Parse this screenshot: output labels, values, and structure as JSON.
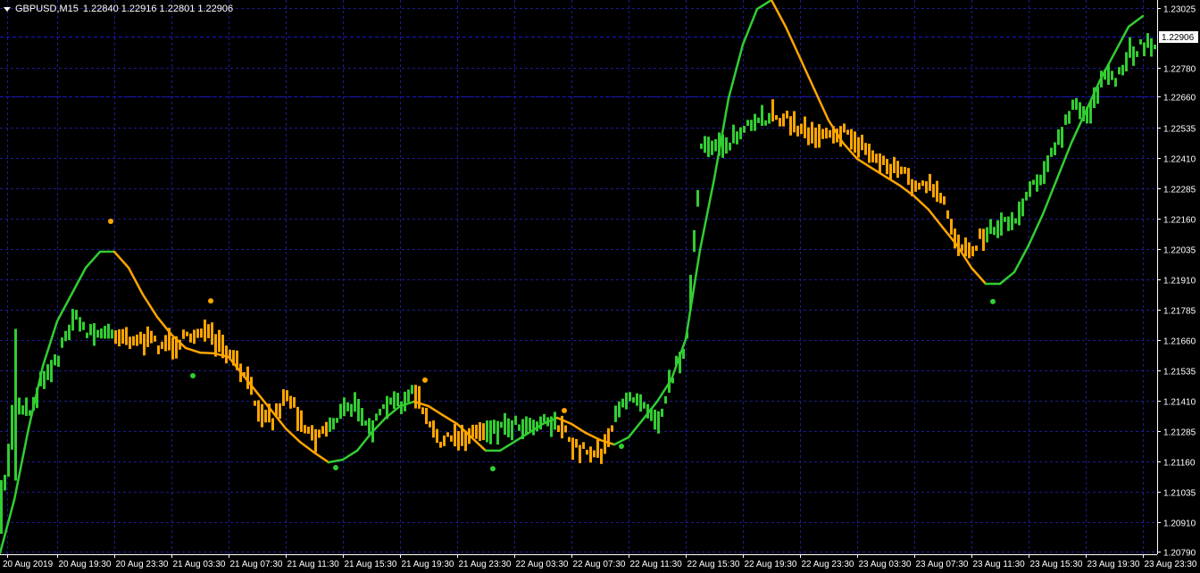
{
  "header": {
    "symbol": "GBPUSD,M15",
    "ohlc": "1.22840 1.22916 1.22801 1.22906",
    "menu_icon": "triangle-down-icon"
  },
  "colors": {
    "background": "#000000",
    "bull": "#32cd32",
    "bear": "#ffa500",
    "grid": "#1c1c8c",
    "axis": "#ffffff",
    "level_line": "#1818c8"
  },
  "chart_data": {
    "type": "bar",
    "title": "GBPUSD,M15",
    "current_price": "1.22906",
    "levels": [
      1.22906,
      1.2266
    ],
    "ylim": [
      1.2079,
      1.23025
    ],
    "grid": true,
    "y_ticks": [
      "1.23025",
      "1.22780",
      "1.22660",
      "1.22535",
      "1.22410",
      "1.22285",
      "1.22160",
      "1.22035",
      "1.21910",
      "1.21785",
      "1.21660",
      "1.21535",
      "1.21410",
      "1.21285",
      "1.21160",
      "1.21035",
      "1.20910",
      "1.20790"
    ],
    "x_ticks": [
      "20 Aug 2019",
      "20 Aug 19:30",
      "20 Aug 23:30",
      "21 Aug 03:30",
      "21 Aug 07:30",
      "21 Aug 11:30",
      "21 Aug 15:30",
      "21 Aug 19:30",
      "21 Aug 23:30",
      "22 Aug 03:30",
      "22 Aug 07:30",
      "22 Aug 11:30",
      "22 Aug 15:30",
      "22 Aug 19:30",
      "22 Aug 23:30",
      "23 Aug 03:30",
      "23 Aug 07:30",
      "23 Aug 11:30",
      "23 Aug 15:30",
      "23 Aug 19:30",
      "23 Aug 23:30"
    ],
    "x": [
      "20 Aug 15:30",
      "20 Aug 16:30",
      "20 Aug 17:30",
      "20 Aug 18:30",
      "20 Aug 19:30",
      "20 Aug 20:30",
      "20 Aug 21:30",
      "20 Aug 22:30",
      "20 Aug 23:30",
      "21 Aug 00:30",
      "21 Aug 01:30",
      "21 Aug 02:30",
      "21 Aug 03:30",
      "21 Aug 04:30",
      "21 Aug 05:30",
      "21 Aug 06:30",
      "21 Aug 07:30",
      "21 Aug 08:30",
      "21 Aug 09:30",
      "21 Aug 10:30",
      "21 Aug 11:30",
      "21 Aug 12:30",
      "21 Aug 13:30",
      "21 Aug 14:30",
      "21 Aug 15:30",
      "21 Aug 16:30",
      "21 Aug 17:30",
      "21 Aug 18:30",
      "21 Aug 19:30",
      "21 Aug 20:30",
      "21 Aug 21:30",
      "21 Aug 22:30",
      "21 Aug 23:30",
      "22 Aug 00:30",
      "22 Aug 01:30",
      "22 Aug 02:30",
      "22 Aug 03:30",
      "22 Aug 04:30",
      "22 Aug 05:30",
      "22 Aug 06:30",
      "22 Aug 07:30",
      "22 Aug 08:30",
      "22 Aug 09:30",
      "22 Aug 10:30",
      "22 Aug 11:30",
      "22 Aug 12:30",
      "22 Aug 13:30",
      "22 Aug 14:30",
      "22 Aug 15:30",
      "22 Aug 16:30",
      "22 Aug 17:30",
      "22 Aug 18:30",
      "22 Aug 19:30",
      "22 Aug 20:30",
      "22 Aug 21:30",
      "22 Aug 22:30",
      "22 Aug 23:30",
      "23 Aug 00:30",
      "23 Aug 01:30",
      "23 Aug 02:30",
      "23 Aug 03:30",
      "23 Aug 04:30",
      "23 Aug 05:30",
      "23 Aug 06:30",
      "23 Aug 07:30",
      "23 Aug 08:30",
      "23 Aug 09:30",
      "23 Aug 10:30",
      "23 Aug 11:30",
      "23 Aug 12:30",
      "23 Aug 13:30",
      "23 Aug 14:30",
      "23 Aug 15:30",
      "23 Aug 16:30",
      "23 Aug 17:30",
      "23 Aug 18:30",
      "23 Aug 19:30",
      "23 Aug 20:30",
      "23 Aug 21:30",
      "23 Aug 22:30",
      "23 Aug 23:30"
    ],
    "series": [
      {
        "kind": "price",
        "values": [
          1.20948,
          1.21407,
          1.2137,
          1.21517,
          1.2159,
          1.21755,
          1.217,
          1.21682,
          1.21693,
          1.21671,
          1.21656,
          1.21645,
          1.21645,
          1.21663,
          1.21708,
          1.21645,
          1.2159,
          1.21517,
          1.21388,
          1.21333,
          1.21443,
          1.21333,
          1.2126,
          1.21315,
          1.2137,
          1.21388,
          1.21296,
          1.21388,
          1.21407,
          1.21443,
          1.21296,
          1.21241,
          1.2126,
          1.21278,
          1.21296,
          1.21304,
          1.21315,
          1.21315,
          1.21333,
          1.21315,
          1.21223,
          1.21205,
          1.21205,
          1.21333,
          1.21443,
          1.21407,
          1.21333,
          1.21517,
          1.21663,
          1.22434,
          1.22471,
          1.22471,
          1.22526,
          1.22544,
          1.22599,
          1.22563,
          1.22526,
          1.22508,
          1.22526,
          1.22508,
          1.22471,
          1.22416,
          1.22379,
          1.22361,
          1.22287,
          1.22287,
          1.22214,
          1.22049,
          1.22049,
          1.22104,
          1.22141,
          1.22159,
          1.22287,
          1.22361,
          1.22471,
          1.22618,
          1.22581,
          1.22728,
          1.22728,
          1.22838,
          1.2288
        ]
      },
      {
        "kind": "moving-average",
        "values": [
          1.20783,
          1.21003,
          1.21296,
          1.21553,
          1.21737,
          1.21847,
          1.21957,
          1.22023,
          1.22023,
          1.21957,
          1.21847,
          1.21755,
          1.21682,
          1.21627,
          1.21608,
          1.21605,
          1.2159,
          1.21517,
          1.21443,
          1.2137,
          1.21296,
          1.21241,
          1.21197,
          1.21157,
          1.21168,
          1.21205,
          1.21278,
          1.2134,
          1.21388,
          1.21407,
          1.21388,
          1.21351,
          1.21315,
          1.2126,
          1.21205,
          1.21205,
          1.21241,
          1.21278,
          1.21315,
          1.2134,
          1.21315,
          1.21278,
          1.21249,
          1.2123,
          1.2126,
          1.21333,
          1.21407,
          1.21498,
          1.21663,
          1.2203,
          1.22324,
          1.22654,
          1.22875,
          1.23021,
          1.23058,
          1.22948,
          1.2282,
          1.22691,
          1.22563,
          1.22471,
          1.22405,
          1.22368,
          1.22331,
          1.22295,
          1.22251,
          1.22196,
          1.22122,
          1.22049,
          1.21957,
          1.21891,
          1.21891,
          1.21939,
          1.22049,
          1.22177,
          1.22324,
          1.22471,
          1.22599,
          1.22728,
          1.22838,
          1.22948,
          1.22992
        ]
      }
    ],
    "signals": [
      {
        "time": "20 Aug 23:15",
        "price": 1.22148,
        "type": "sell"
      },
      {
        "time": "21 Aug 05:00",
        "price": 1.21513,
        "type": "buy"
      },
      {
        "time": "21 Aug 06:15",
        "price": 1.21821,
        "type": "sell"
      },
      {
        "time": "21 Aug 15:00",
        "price": 1.21135,
        "type": "buy"
      },
      {
        "time": "21 Aug 21:15",
        "price": 1.21495,
        "type": "sell"
      },
      {
        "time": "22 Aug 02:00",
        "price": 1.21131,
        "type": "buy"
      },
      {
        "time": "22 Aug 07:00",
        "price": 1.2137,
        "type": "sell"
      },
      {
        "time": "22 Aug 11:00",
        "price": 1.21223,
        "type": "buy"
      },
      {
        "time": "23 Aug 13:00",
        "price": 1.21818,
        "type": "buy"
      }
    ]
  }
}
